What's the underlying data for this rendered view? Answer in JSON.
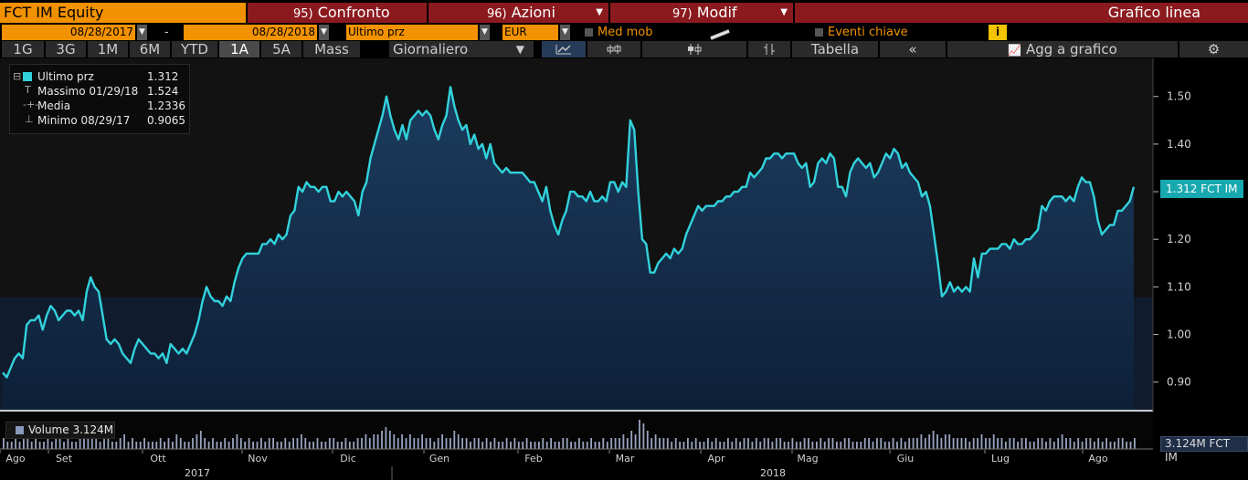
{
  "header": {
    "ticker": "FCT IM Equity",
    "menu1_num": "95)",
    "menu1_label": "Confronto",
    "menu2_num": "96)",
    "menu2_label": "Azioni",
    "menu3_num": "97)",
    "menu3_label": "Modif",
    "chart_type_label": "Grafico linea"
  },
  "controls": {
    "start_date": "08/28/2017",
    "dash": "-",
    "end_date": "08/28/2018",
    "field": "Ultimo prz",
    "currency": "EUR",
    "moving_avg_label": "Med mob",
    "key_events_label": "Eventi chiave",
    "info_icon_glyph": "i"
  },
  "toolbar": {
    "periods": [
      "1G",
      "3G",
      "1M",
      "6M",
      "YTD",
      "1A",
      "5A",
      "Mass"
    ],
    "selected_period": "1A",
    "frequency": "Giornaliero",
    "line_icon": "~",
    "bar_icon": "¢",
    "candle_icon": "⌘",
    "hl_icon": "⇅",
    "table_label": "Tabella",
    "collapse_label": "«",
    "add_to_chart_label": "Agg a grafico",
    "settings_icon": "⚙"
  },
  "legend": {
    "last_label": "Ultimo prz",
    "last_value": "1.312",
    "max_label": "Massimo 01/29/18",
    "max_value": "1.524",
    "avg_label": "Media",
    "avg_value": "1.2336",
    "min_label": "Minimo 08/29/17",
    "min_value": "0.9065",
    "volume_label": "Volume 3.124M"
  },
  "tags": {
    "price_tag": "1.312 FCT IM",
    "volume_tag": "3.124M FCT IM"
  },
  "chart_data": {
    "type": "area",
    "title": "",
    "xlabel": "",
    "ylabel": "",
    "ylim": [
      0.84,
      1.58
    ],
    "y_ticks": [
      "0.90",
      "1.00",
      "1.10",
      "1.20",
      "1.30",
      "1.40",
      "1.50"
    ],
    "x_ticks": [
      "Ago",
      "Set",
      "Ott",
      "Nov",
      "Dic",
      "Gen",
      "Feb",
      "Mar",
      "Apr",
      "Mag",
      "Giu",
      "Lug",
      "Ago"
    ],
    "years": [
      "2017",
      "2018"
    ],
    "grid": false,
    "legend_position": "top-left",
    "series": [
      {
        "name": "Ultimo prz",
        "color": "#32d2dc",
        "values": [
          0.92,
          0.91,
          0.93,
          0.95,
          0.96,
          0.95,
          1.02,
          1.03,
          1.03,
          1.04,
          1.01,
          1.04,
          1.06,
          1.05,
          1.03,
          1.04,
          1.05,
          1.05,
          1.04,
          1.05,
          1.03,
          1.09,
          1.12,
          1.1,
          1.09,
          1.04,
          0.99,
          0.98,
          0.99,
          0.98,
          0.96,
          0.95,
          0.94,
          0.97,
          0.99,
          0.98,
          0.97,
          0.96,
          0.96,
          0.95,
          0.96,
          0.94,
          0.98,
          0.97,
          0.96,
          0.97,
          0.96,
          0.98,
          1.0,
          1.03,
          1.07,
          1.1,
          1.08,
          1.07,
          1.07,
          1.06,
          1.08,
          1.07,
          1.11,
          1.14,
          1.16,
          1.17,
          1.17,
          1.17,
          1.17,
          1.19,
          1.19,
          1.2,
          1.19,
          1.21,
          1.2,
          1.21,
          1.25,
          1.26,
          1.31,
          1.3,
          1.32,
          1.31,
          1.31,
          1.3,
          1.31,
          1.31,
          1.28,
          1.28,
          1.3,
          1.29,
          1.3,
          1.29,
          1.28,
          1.25,
          1.3,
          1.32,
          1.37,
          1.4,
          1.43,
          1.46,
          1.5,
          1.46,
          1.43,
          1.41,
          1.44,
          1.41,
          1.45,
          1.46,
          1.47,
          1.46,
          1.47,
          1.46,
          1.43,
          1.41,
          1.44,
          1.46,
          1.52,
          1.48,
          1.45,
          1.43,
          1.44,
          1.4,
          1.42,
          1.39,
          1.4,
          1.37,
          1.4,
          1.36,
          1.35,
          1.34,
          1.35,
          1.34,
          1.34,
          1.34,
          1.34,
          1.33,
          1.32,
          1.32,
          1.3,
          1.28,
          1.31,
          1.26,
          1.23,
          1.21,
          1.24,
          1.26,
          1.3,
          1.3,
          1.29,
          1.29,
          1.28,
          1.3,
          1.28,
          1.28,
          1.29,
          1.28,
          1.32,
          1.32,
          1.3,
          1.32,
          1.31,
          1.45,
          1.43,
          1.3,
          1.2,
          1.19,
          1.13,
          1.13,
          1.15,
          1.16,
          1.17,
          1.16,
          1.18,
          1.17,
          1.18,
          1.21,
          1.23,
          1.25,
          1.27,
          1.26,
          1.27,
          1.27,
          1.27,
          1.28,
          1.28,
          1.29,
          1.29,
          1.3,
          1.3,
          1.31,
          1.31,
          1.34,
          1.33,
          1.34,
          1.35,
          1.37,
          1.37,
          1.38,
          1.38,
          1.37,
          1.38,
          1.38,
          1.38,
          1.36,
          1.35,
          1.36,
          1.31,
          1.32,
          1.36,
          1.37,
          1.36,
          1.38,
          1.37,
          1.31,
          1.31,
          1.29,
          1.34,
          1.36,
          1.37,
          1.36,
          1.35,
          1.36,
          1.33,
          1.34,
          1.36,
          1.38,
          1.37,
          1.39,
          1.38,
          1.35,
          1.36,
          1.34,
          1.33,
          1.32,
          1.29,
          1.3,
          1.27,
          1.21,
          1.15,
          1.08,
          1.09,
          1.11,
          1.09,
          1.1,
          1.09,
          1.1,
          1.09,
          1.16,
          1.12,
          1.17,
          1.17,
          1.18,
          1.18,
          1.18,
          1.19,
          1.19,
          1.18,
          1.2,
          1.19,
          1.19,
          1.2,
          1.2,
          1.21,
          1.22,
          1.27,
          1.26,
          1.28,
          1.29,
          1.29,
          1.29,
          1.28,
          1.29,
          1.28,
          1.31,
          1.33,
          1.32,
          1.32,
          1.29,
          1.24,
          1.21,
          1.22,
          1.23,
          1.23,
          1.26,
          1.26,
          1.27,
          1.28,
          1.31
        ]
      }
    ],
    "volume": [
      3,
      2,
      2,
      3,
      2,
      4,
      3,
      2,
      3,
      2,
      2,
      3,
      2,
      3,
      3,
      2,
      3,
      2,
      2,
      3,
      4,
      3,
      5,
      3,
      2,
      3,
      3,
      2,
      2,
      3,
      4,
      2,
      3,
      2,
      2,
      3,
      2,
      2,
      2,
      3,
      2,
      3,
      2,
      4,
      3,
      2,
      2,
      3,
      4,
      5,
      3,
      2,
      3,
      2,
      2,
      3,
      2,
      3,
      4,
      3,
      2,
      3,
      2,
      2,
      3,
      2,
      3,
      3,
      2,
      2,
      3,
      2,
      3,
      3,
      4,
      3,
      2,
      2,
      3,
      2,
      2,
      3,
      3,
      2,
      2,
      3,
      2,
      2,
      3,
      3,
      4,
      3,
      4,
      4,
      5,
      6,
      5,
      4,
      3,
      4,
      3,
      4,
      3,
      3,
      4,
      3,
      3,
      2,
      3,
      4,
      3,
      3,
      5,
      4,
      3,
      3,
      2,
      3,
      3,
      2,
      3,
      2,
      3,
      2,
      2,
      3,
      2,
      3,
      2,
      2,
      3,
      2,
      2,
      2,
      3,
      2,
      3,
      2,
      2,
      3,
      3,
      2,
      2,
      3,
      2,
      2,
      3,
      2,
      2,
      3,
      2,
      3,
      3,
      3,
      4,
      3,
      5,
      4,
      8,
      7,
      5,
      3,
      4,
      3,
      3,
      3,
      2,
      3,
      2,
      2,
      3,
      2,
      3,
      2,
      2,
      3,
      2,
      3,
      2,
      2,
      3,
      2,
      3,
      2,
      3,
      3,
      2,
      3,
      2,
      3,
      3,
      2,
      3,
      3,
      2,
      2,
      3,
      2,
      2,
      3,
      3,
      2,
      2,
      3,
      2,
      3,
      3,
      2,
      2,
      3,
      3,
      2,
      2,
      2,
      3,
      3,
      2,
      3,
      3,
      2,
      2,
      3,
      2,
      3,
      2,
      3,
      3,
      3,
      4,
      3,
      4,
      5,
      4,
      3,
      4,
      4,
      3,
      3,
      3,
      3,
      2,
      3,
      3,
      4,
      3,
      3,
      4,
      3,
      3,
      2,
      3,
      3,
      2,
      3,
      3,
      2,
      2,
      3,
      3,
      2,
      3,
      2,
      3,
      4,
      3,
      3,
      2,
      3,
      2,
      3,
      3,
      2,
      3,
      2,
      3,
      2,
      2,
      3,
      3,
      2,
      2,
      3
    ]
  }
}
